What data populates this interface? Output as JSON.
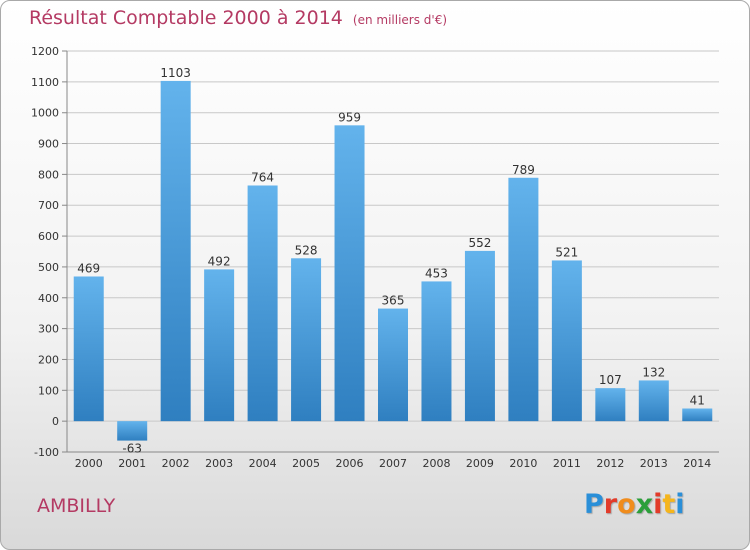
{
  "header": {
    "title": "Résultat Comptable 2000 à 2014",
    "unit": "(en milliers d'€)"
  },
  "footer": {
    "commune": "AMBILLY",
    "brand_letters": [
      "P",
      "r",
      "o",
      "x",
      "i",
      "t",
      "i"
    ],
    "brand_colors": [
      "#2a8fd8",
      "#e23b2a",
      "#f08c1c",
      "#2b9f3a",
      "#e23b2a",
      "#f5b51c",
      "#2a8fd8"
    ]
  },
  "colors": {
    "title": "#b43a63",
    "bar_top": "#63b3ec",
    "bar_bottom": "#2f7fc0",
    "grid": "#c8c8c8",
    "axis_text": "#333333"
  },
  "chart_data": {
    "type": "bar",
    "title": "Résultat Comptable 2000 à 2014",
    "subtitle": "(en milliers d'€)",
    "categories": [
      "2000",
      "2001",
      "2002",
      "2003",
      "2004",
      "2005",
      "2006",
      "2007",
      "2008",
      "2009",
      "2010",
      "2011",
      "2012",
      "2013",
      "2014"
    ],
    "values": [
      469,
      -63,
      1103,
      492,
      764,
      528,
      959,
      365,
      453,
      552,
      789,
      521,
      107,
      132,
      41
    ],
    "ylim": [
      -100,
      1200
    ],
    "yticks": [
      -100,
      0,
      100,
      200,
      300,
      400,
      500,
      600,
      700,
      800,
      900,
      1000,
      1100,
      1200
    ],
    "grid": true,
    "xlabel": "",
    "ylabel": ""
  }
}
